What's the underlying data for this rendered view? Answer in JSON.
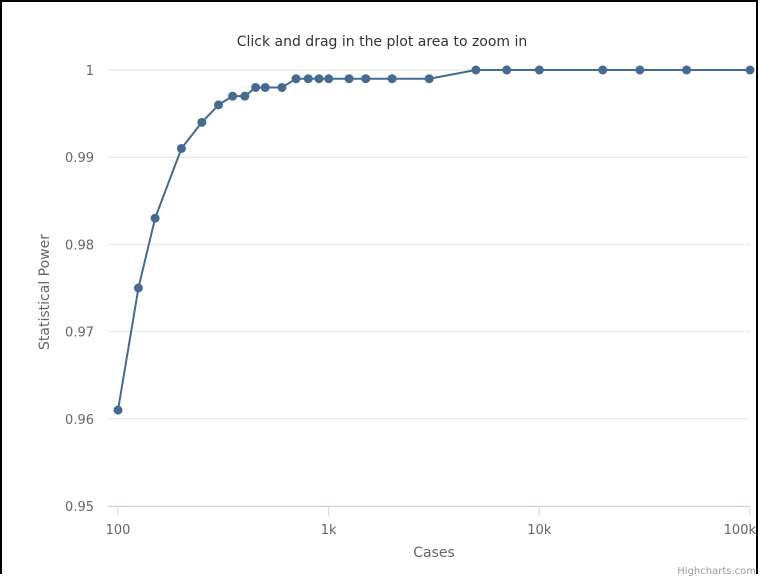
{
  "chart_data": {
    "type": "line",
    "title": "Click and drag in the plot area to zoom in",
    "xlabel": "Cases",
    "ylabel": "Statistical Power",
    "x_scale": "log",
    "xlim": [
      100,
      100000
    ],
    "ylim": [
      0.95,
      1.0
    ],
    "x_ticks": [
      {
        "value": 100,
        "label": "100"
      },
      {
        "value": 1000,
        "label": "1k"
      },
      {
        "value": 10000,
        "label": "10k"
      },
      {
        "value": 100000,
        "label": "100k"
      }
    ],
    "y_ticks": [
      {
        "value": 0.95,
        "label": "0.95"
      },
      {
        "value": 0.96,
        "label": "0.96"
      },
      {
        "value": 0.97,
        "label": "0.97"
      },
      {
        "value": 0.98,
        "label": "0.98"
      },
      {
        "value": 0.99,
        "label": "0.99"
      },
      {
        "value": 1.0,
        "label": "1"
      }
    ],
    "grid": "horizontal",
    "legend": "none",
    "series": [
      {
        "color": "#456b93",
        "points": [
          {
            "x": 100,
            "y": 0.961
          },
          {
            "x": 125,
            "y": 0.975
          },
          {
            "x": 150,
            "y": 0.983
          },
          {
            "x": 200,
            "y": 0.991
          },
          {
            "x": 250,
            "y": 0.994
          },
          {
            "x": 300,
            "y": 0.996
          },
          {
            "x": 350,
            "y": 0.997
          },
          {
            "x": 400,
            "y": 0.997
          },
          {
            "x": 450,
            "y": 0.998
          },
          {
            "x": 500,
            "y": 0.998
          },
          {
            "x": 600,
            "y": 0.998
          },
          {
            "x": 700,
            "y": 0.999
          },
          {
            "x": 800,
            "y": 0.999
          },
          {
            "x": 900,
            "y": 0.999
          },
          {
            "x": 1000,
            "y": 0.999
          },
          {
            "x": 1250,
            "y": 0.999
          },
          {
            "x": 1500,
            "y": 0.999
          },
          {
            "x": 2000,
            "y": 0.999
          },
          {
            "x": 3000,
            "y": 0.999
          },
          {
            "x": 5000,
            "y": 1.0
          },
          {
            "x": 7000,
            "y": 1.0
          },
          {
            "x": 10000,
            "y": 1.0
          },
          {
            "x": 20000,
            "y": 1.0
          },
          {
            "x": 30000,
            "y": 1.0
          },
          {
            "x": 50000,
            "y": 1.0
          },
          {
            "x": 100000,
            "y": 1.0
          }
        ]
      }
    ]
  },
  "credits": "Highcharts.com",
  "colors": {
    "grid": "#e6e6e6",
    "axis": "#ccd6eb",
    "series": "#456b93"
  }
}
